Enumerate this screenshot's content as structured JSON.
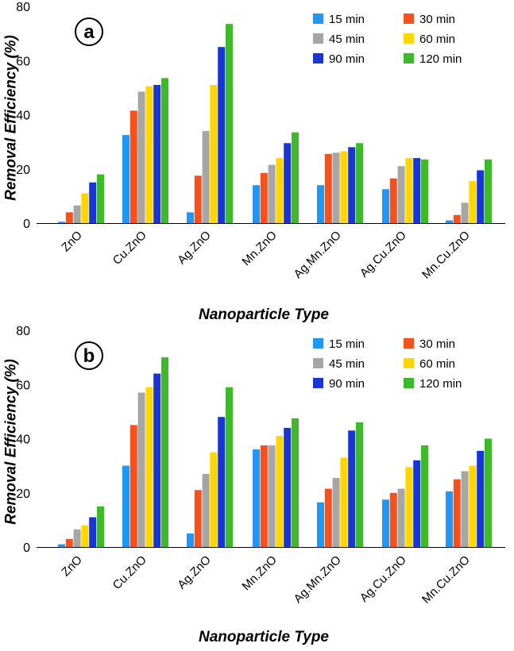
{
  "colors": {
    "15 min": "#2196f3",
    "30 min": "#f4511e",
    "45 min": "#a6a6a6",
    "60 min": "#ffd600",
    "90 min": "#1a35d6",
    "120 min": "#3cba2a"
  },
  "chart_data": [
    {
      "type": "bar",
      "panel_label": "a",
      "xlabel": "Nanoparticle Type",
      "ylabel": "Removal Efficiency (%)",
      "ylim": [
        0,
        80
      ],
      "yticks": [
        "0",
        "20",
        "40",
        "60",
        "80"
      ],
      "legend_position": "top-right",
      "categories": [
        "ZnO",
        "Cu.ZnO",
        "Ag.ZnO",
        "Mn.ZnO",
        "Ag.Mn.ZnO",
        "Ag.Cu.ZnO",
        "Mn.Cu.ZnO"
      ],
      "series": [
        {
          "name": "15 min",
          "values": [
            0.5,
            32.5,
            4,
            14,
            14,
            12.5,
            1
          ]
        },
        {
          "name": "30 min",
          "values": [
            4,
            41.5,
            17.5,
            18.5,
            25.5,
            16.5,
            3
          ]
        },
        {
          "name": "45 min",
          "values": [
            6.5,
            48.5,
            34,
            21.5,
            26,
            21,
            7.5
          ]
        },
        {
          "name": "60 min",
          "values": [
            11,
            50.5,
            51,
            24,
            26.5,
            24,
            15.5
          ]
        },
        {
          "name": "90 min",
          "values": [
            15,
            51,
            65,
            29.5,
            28,
            24,
            19.5
          ]
        },
        {
          "name": "120 min",
          "values": [
            18,
            53.5,
            73.5,
            33.5,
            29.5,
            23.5,
            23.5
          ]
        }
      ]
    },
    {
      "type": "bar",
      "panel_label": "b",
      "xlabel": "Nanoparticle Type",
      "ylabel": "Removal Efficiency (%)",
      "ylim": [
        0,
        80
      ],
      "yticks": [
        "0",
        "20",
        "40",
        "60",
        "80"
      ],
      "legend_position": "top-right",
      "categories": [
        "ZnO",
        "Cu.ZnO",
        "Ag.ZnO",
        "Mn.ZnO",
        "Ag.Mn.ZnO",
        "Ag.Cu.ZnO",
        "Mn.Cu.ZnO"
      ],
      "series": [
        {
          "name": "15 min",
          "values": [
            1,
            30,
            5,
            36,
            16.5,
            17.5,
            20.5
          ]
        },
        {
          "name": "30 min",
          "values": [
            3,
            45,
            21,
            37.5,
            21.5,
            20,
            25
          ]
        },
        {
          "name": "45 min",
          "values": [
            6.5,
            57,
            27,
            37.5,
            25.5,
            21.5,
            28
          ]
        },
        {
          "name": "60 min",
          "values": [
            8,
            59,
            35,
            41,
            33,
            29.5,
            30
          ]
        },
        {
          "name": "90 min",
          "values": [
            11,
            64,
            48,
            44,
            43,
            32,
            35.5
          ]
        },
        {
          "name": "120 min",
          "values": [
            15,
            70,
            59,
            47.5,
            46,
            37.5,
            40
          ]
        }
      ]
    }
  ]
}
